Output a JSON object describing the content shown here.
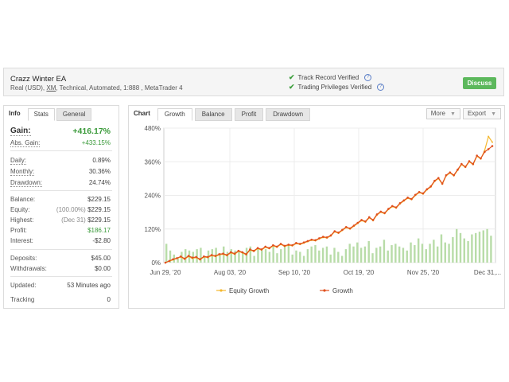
{
  "header": {
    "name": "Crazz Winter EA",
    "sub_prefix": "Real (USD),",
    "broker": "XM",
    "sub_suffix": ", Technical, Automated, 1:888 , MetaTrader 4",
    "track_record": "Track Record Verified",
    "trading_privileges": "Trading Privileges Verified",
    "discuss": "Discuss",
    "colors": {
      "discuss": "#5cb85c",
      "check": "#3f9f3f"
    }
  },
  "info": {
    "tabs": {
      "label": "Info",
      "stats": "Stats",
      "general": "General"
    },
    "gain_label": "Gain:",
    "gain": "+416.17%",
    "abs_gain_label": "Abs. Gain:",
    "abs_gain": "+433.15%",
    "daily_label": "Daily:",
    "daily": "0.89%",
    "monthly_label": "Monthly:",
    "monthly": "30.36%",
    "drawdown_label": "Drawdown:",
    "drawdown": "24.74%",
    "balance_label": "Balance:",
    "balance": "$229.15",
    "equity_label": "Equity:",
    "equity_pct": "(100.00%)",
    "equity": "$229.15",
    "highest_label": "Highest:",
    "highest_date": "(Dec 31)",
    "highest": "$229.15",
    "profit_label": "Profit:",
    "profit": "$186.17",
    "interest_label": "Interest:",
    "interest": "-$2.80",
    "deposits_label": "Deposits:",
    "deposits": "$45.00",
    "withdrawals_label": "Withdrawals:",
    "withdrawals": "$0.00",
    "updated_label": "Updated:",
    "updated": "53 Minutes ago",
    "tracking_label": "Tracking",
    "tracking": "0"
  },
  "chart": {
    "label": "Chart",
    "tabs": [
      "Growth",
      "Balance",
      "Profit",
      "Drawdown"
    ],
    "more": "More",
    "export": "Export"
  },
  "chart_data": {
    "type": "line",
    "title": "",
    "xlabel": "",
    "ylabel": "",
    "x_tick_labels": [
      "Jun 29, '20",
      "Aug 03, '20",
      "Sep 10, '20",
      "Oct 19, '20",
      "Nov 25, '20",
      "Dec 31,..."
    ],
    "y_tick_labels": [
      "480%",
      "360%",
      "240%",
      "120%",
      "0%"
    ],
    "ylim": [
      0,
      480
    ],
    "grid": true,
    "legend_position": "bottom",
    "series": [
      {
        "name": "Equity Growth",
        "color": "#f5b82e",
        "values": [
          0,
          5,
          10,
          15,
          20,
          12,
          22,
          15,
          18,
          10,
          20,
          18,
          25,
          22,
          28,
          30,
          25,
          35,
          30,
          40,
          35,
          28,
          45,
          40,
          50,
          45,
          55,
          50,
          60,
          55,
          65,
          58,
          62,
          60,
          68,
          65,
          70,
          75,
          80,
          78,
          85,
          90,
          88,
          95,
          110,
          105,
          115,
          125,
          120,
          130,
          140,
          150,
          145,
          160,
          150,
          170,
          180,
          175,
          190,
          200,
          195,
          210,
          220,
          230,
          225,
          240,
          250,
          245,
          260,
          270,
          290,
          300,
          280,
          310,
          320,
          310,
          330,
          350,
          340,
          360,
          350,
          380,
          370,
          400,
          450,
          430
        ]
      },
      {
        "name": "Growth",
        "color": "#e0501e",
        "values": [
          0,
          6,
          12,
          16,
          22,
          14,
          24,
          18,
          20,
          12,
          22,
          20,
          27,
          24,
          30,
          32,
          27,
          37,
          32,
          42,
          37,
          30,
          47,
          42,
          52,
          47,
          57,
          52,
          62,
          57,
          67,
          60,
          64,
          62,
          70,
          67,
          72,
          77,
          82,
          80,
          87,
          92,
          90,
          97,
          112,
          107,
          117,
          127,
          122,
          132,
          142,
          152,
          147,
          162,
          152,
          172,
          182,
          177,
          192,
          202,
          197,
          212,
          222,
          232,
          227,
          242,
          252,
          247,
          262,
          272,
          292,
          302,
          282,
          312,
          322,
          312,
          332,
          352,
          342,
          362,
          352,
          382,
          372,
          395,
          405,
          416
        ]
      }
    ],
    "bars_values_pct": [
      14,
      9,
      6,
      4,
      8,
      10,
      9,
      8,
      10,
      11,
      5,
      9,
      10,
      11,
      7,
      12,
      8,
      10,
      9,
      9,
      8,
      11,
      12,
      5,
      11,
      9,
      10,
      8,
      12,
      7,
      10,
      12,
      13,
      6,
      9,
      8,
      5,
      10,
      12,
      13,
      9,
      11,
      12,
      6,
      11,
      8,
      5,
      10,
      14,
      12,
      15,
      11,
      12,
      16,
      7,
      11,
      12,
      17,
      9,
      13,
      14,
      12,
      11,
      9,
      15,
      13,
      18,
      14,
      10,
      14,
      17,
      12,
      21,
      15,
      14,
      19,
      25,
      22,
      18,
      16,
      21,
      22,
      23,
      24,
      25,
      20
    ]
  }
}
